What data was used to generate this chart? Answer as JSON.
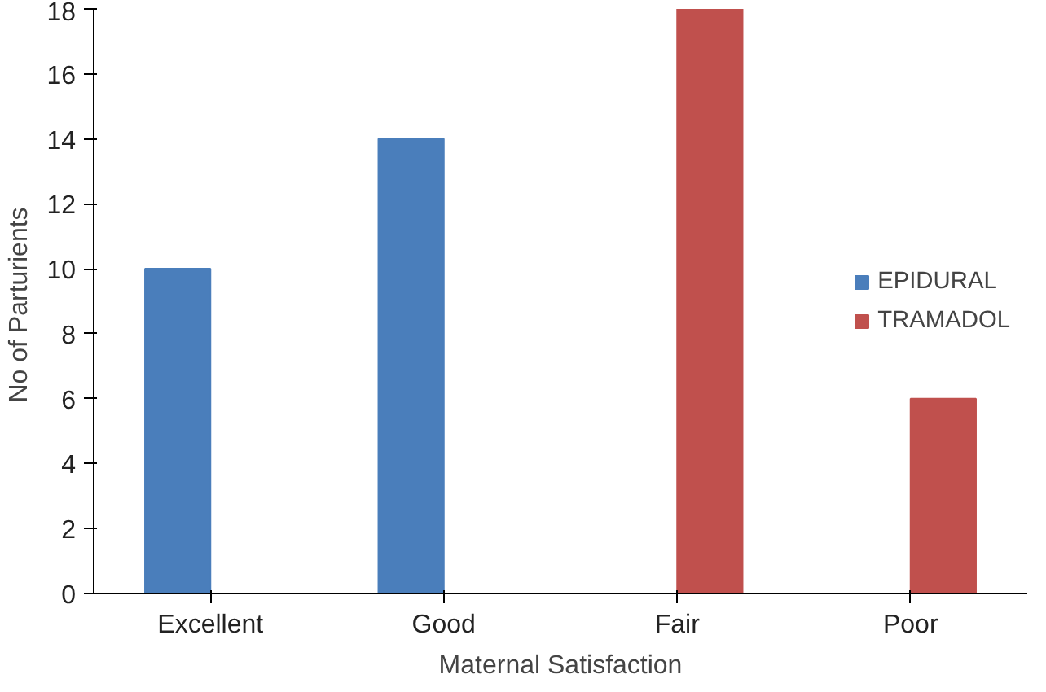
{
  "chart_data": {
    "type": "bar",
    "xlabel": "Maternal Satisfaction",
    "ylabel": "No  of Parturients",
    "categories": [
      "Excellent",
      "Good",
      "Fair",
      "Poor"
    ],
    "series": [
      {
        "name": "EPIDURAL",
        "color": "#4a7ebb",
        "values": [
          10,
          14,
          0,
          0
        ]
      },
      {
        "name": "TRAMADOL",
        "color": "#c0504d",
        "values": [
          0,
          0,
          18,
          6
        ]
      }
    ],
    "ylim": [
      0,
      18
    ],
    "yticks": [
      0,
      2,
      4,
      6,
      8,
      10,
      12,
      14,
      16,
      18
    ],
    "grid": false,
    "legend": "right"
  }
}
